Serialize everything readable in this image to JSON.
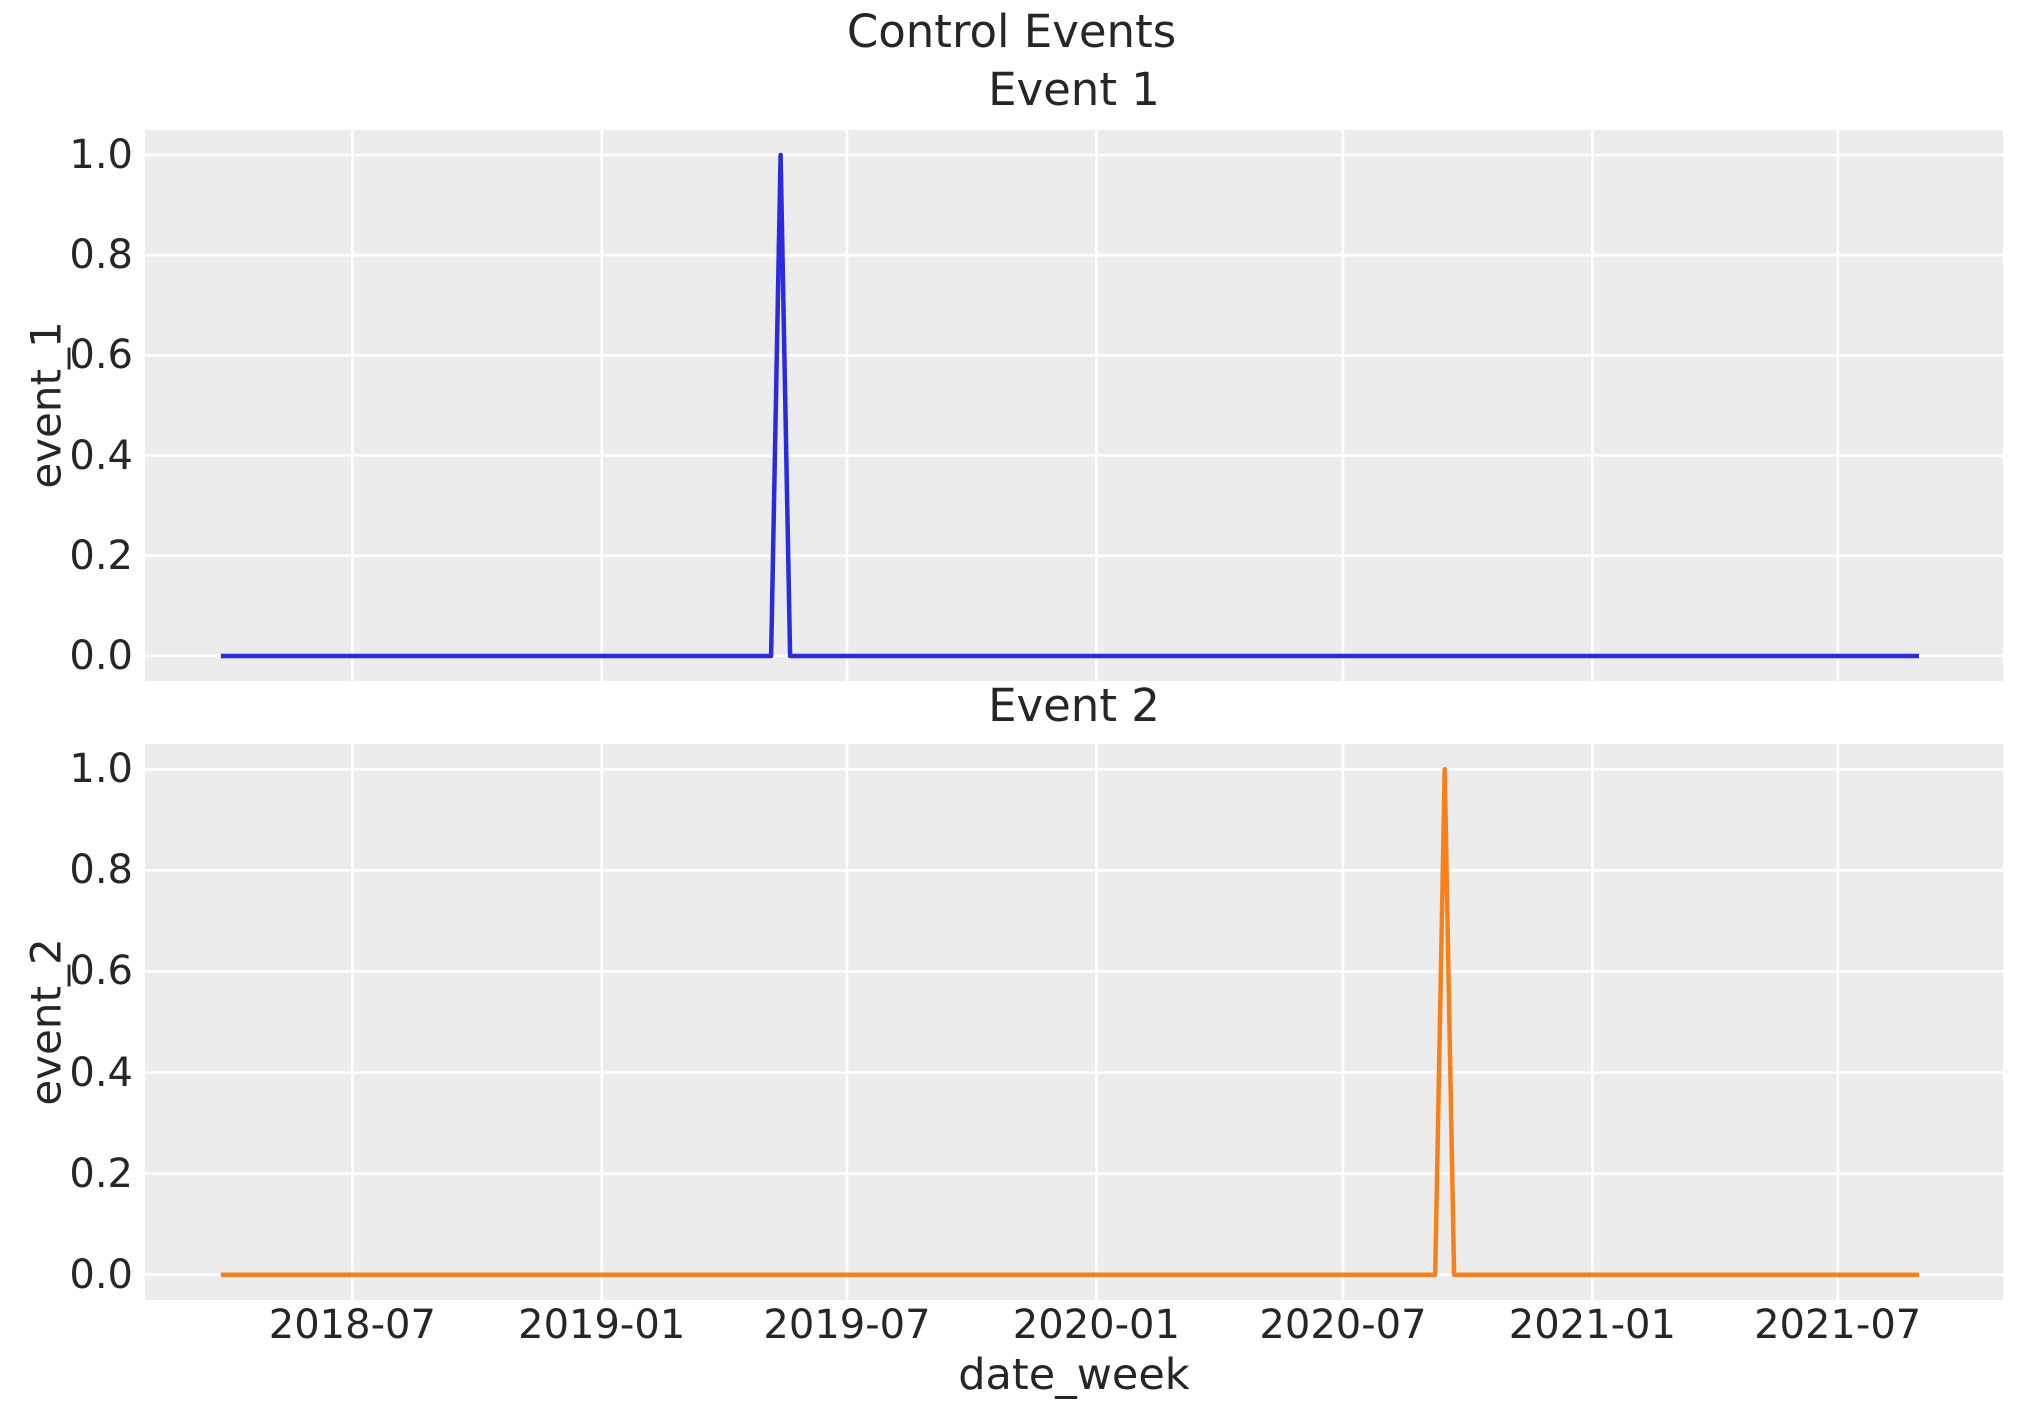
{
  "figure": {
    "suptitle": "Control Events",
    "xlabel": "date_week",
    "text_color": "#262626",
    "plot_bg": "#ececec",
    "grid_color": "#ffffff",
    "x_axis": {
      "ticks": [
        {
          "date": "2018-07-01",
          "label": "2018-07"
        },
        {
          "date": "2019-01-01",
          "label": "2019-01"
        },
        {
          "date": "2019-07-01",
          "label": "2019-07"
        },
        {
          "date": "2020-01-01",
          "label": "2020-01"
        },
        {
          "date": "2020-07-01",
          "label": "2020-07"
        },
        {
          "date": "2021-01-01",
          "label": "2021-01"
        },
        {
          "date": "2021-07-01",
          "label": "2021-07"
        }
      ]
    }
  },
  "chart_data": [
    {
      "type": "line",
      "title": "Event 1",
      "ylabel": "event_1",
      "xlabel": "date_week",
      "grid": true,
      "legend": "none",
      "xlim": [
        "2018-01-29",
        "2021-10-31"
      ],
      "ylim": [
        -0.05,
        1.05
      ],
      "yticks": [
        {
          "value": 0.0,
          "label": "0.0"
        },
        {
          "value": 0.2,
          "label": "0.2"
        },
        {
          "value": 0.4,
          "label": "0.4"
        },
        {
          "value": 0.6,
          "label": "0.6"
        },
        {
          "value": 0.8,
          "label": "0.8"
        },
        {
          "value": 1.0,
          "label": "1.0"
        }
      ],
      "series": [
        {
          "name": "event_1",
          "color": "#2a2ae0",
          "line_width": 4.5,
          "description": "weekly indicator, 0 everywhere except a single week spike to 1",
          "points": [
            [
              "2018-03-26",
              0
            ],
            [
              "2019-05-06",
              0
            ],
            [
              "2019-05-13",
              1
            ],
            [
              "2019-05-20",
              0
            ],
            [
              "2021-08-30",
              0
            ]
          ]
        }
      ]
    },
    {
      "type": "line",
      "title": "Event 2",
      "ylabel": "event_2",
      "xlabel": "date_week",
      "grid": true,
      "legend": "none",
      "xlim": [
        "2018-01-29",
        "2021-10-31"
      ],
      "ylim": [
        -0.05,
        1.05
      ],
      "yticks": [
        {
          "value": 0.0,
          "label": "0.0"
        },
        {
          "value": 0.2,
          "label": "0.2"
        },
        {
          "value": 0.4,
          "label": "0.4"
        },
        {
          "value": 0.6,
          "label": "0.6"
        },
        {
          "value": 0.8,
          "label": "0.8"
        },
        {
          "value": 1.0,
          "label": "1.0"
        }
      ],
      "series": [
        {
          "name": "event_2",
          "color": "#f8801b",
          "line_width": 4.5,
          "description": "weekly indicator, 0 everywhere except a single week spike to 1",
          "points": [
            [
              "2018-03-26",
              0
            ],
            [
              "2020-09-07",
              0
            ],
            [
              "2020-09-14",
              1
            ],
            [
              "2020-09-21",
              0
            ],
            [
              "2021-08-30",
              0
            ]
          ]
        }
      ]
    }
  ]
}
